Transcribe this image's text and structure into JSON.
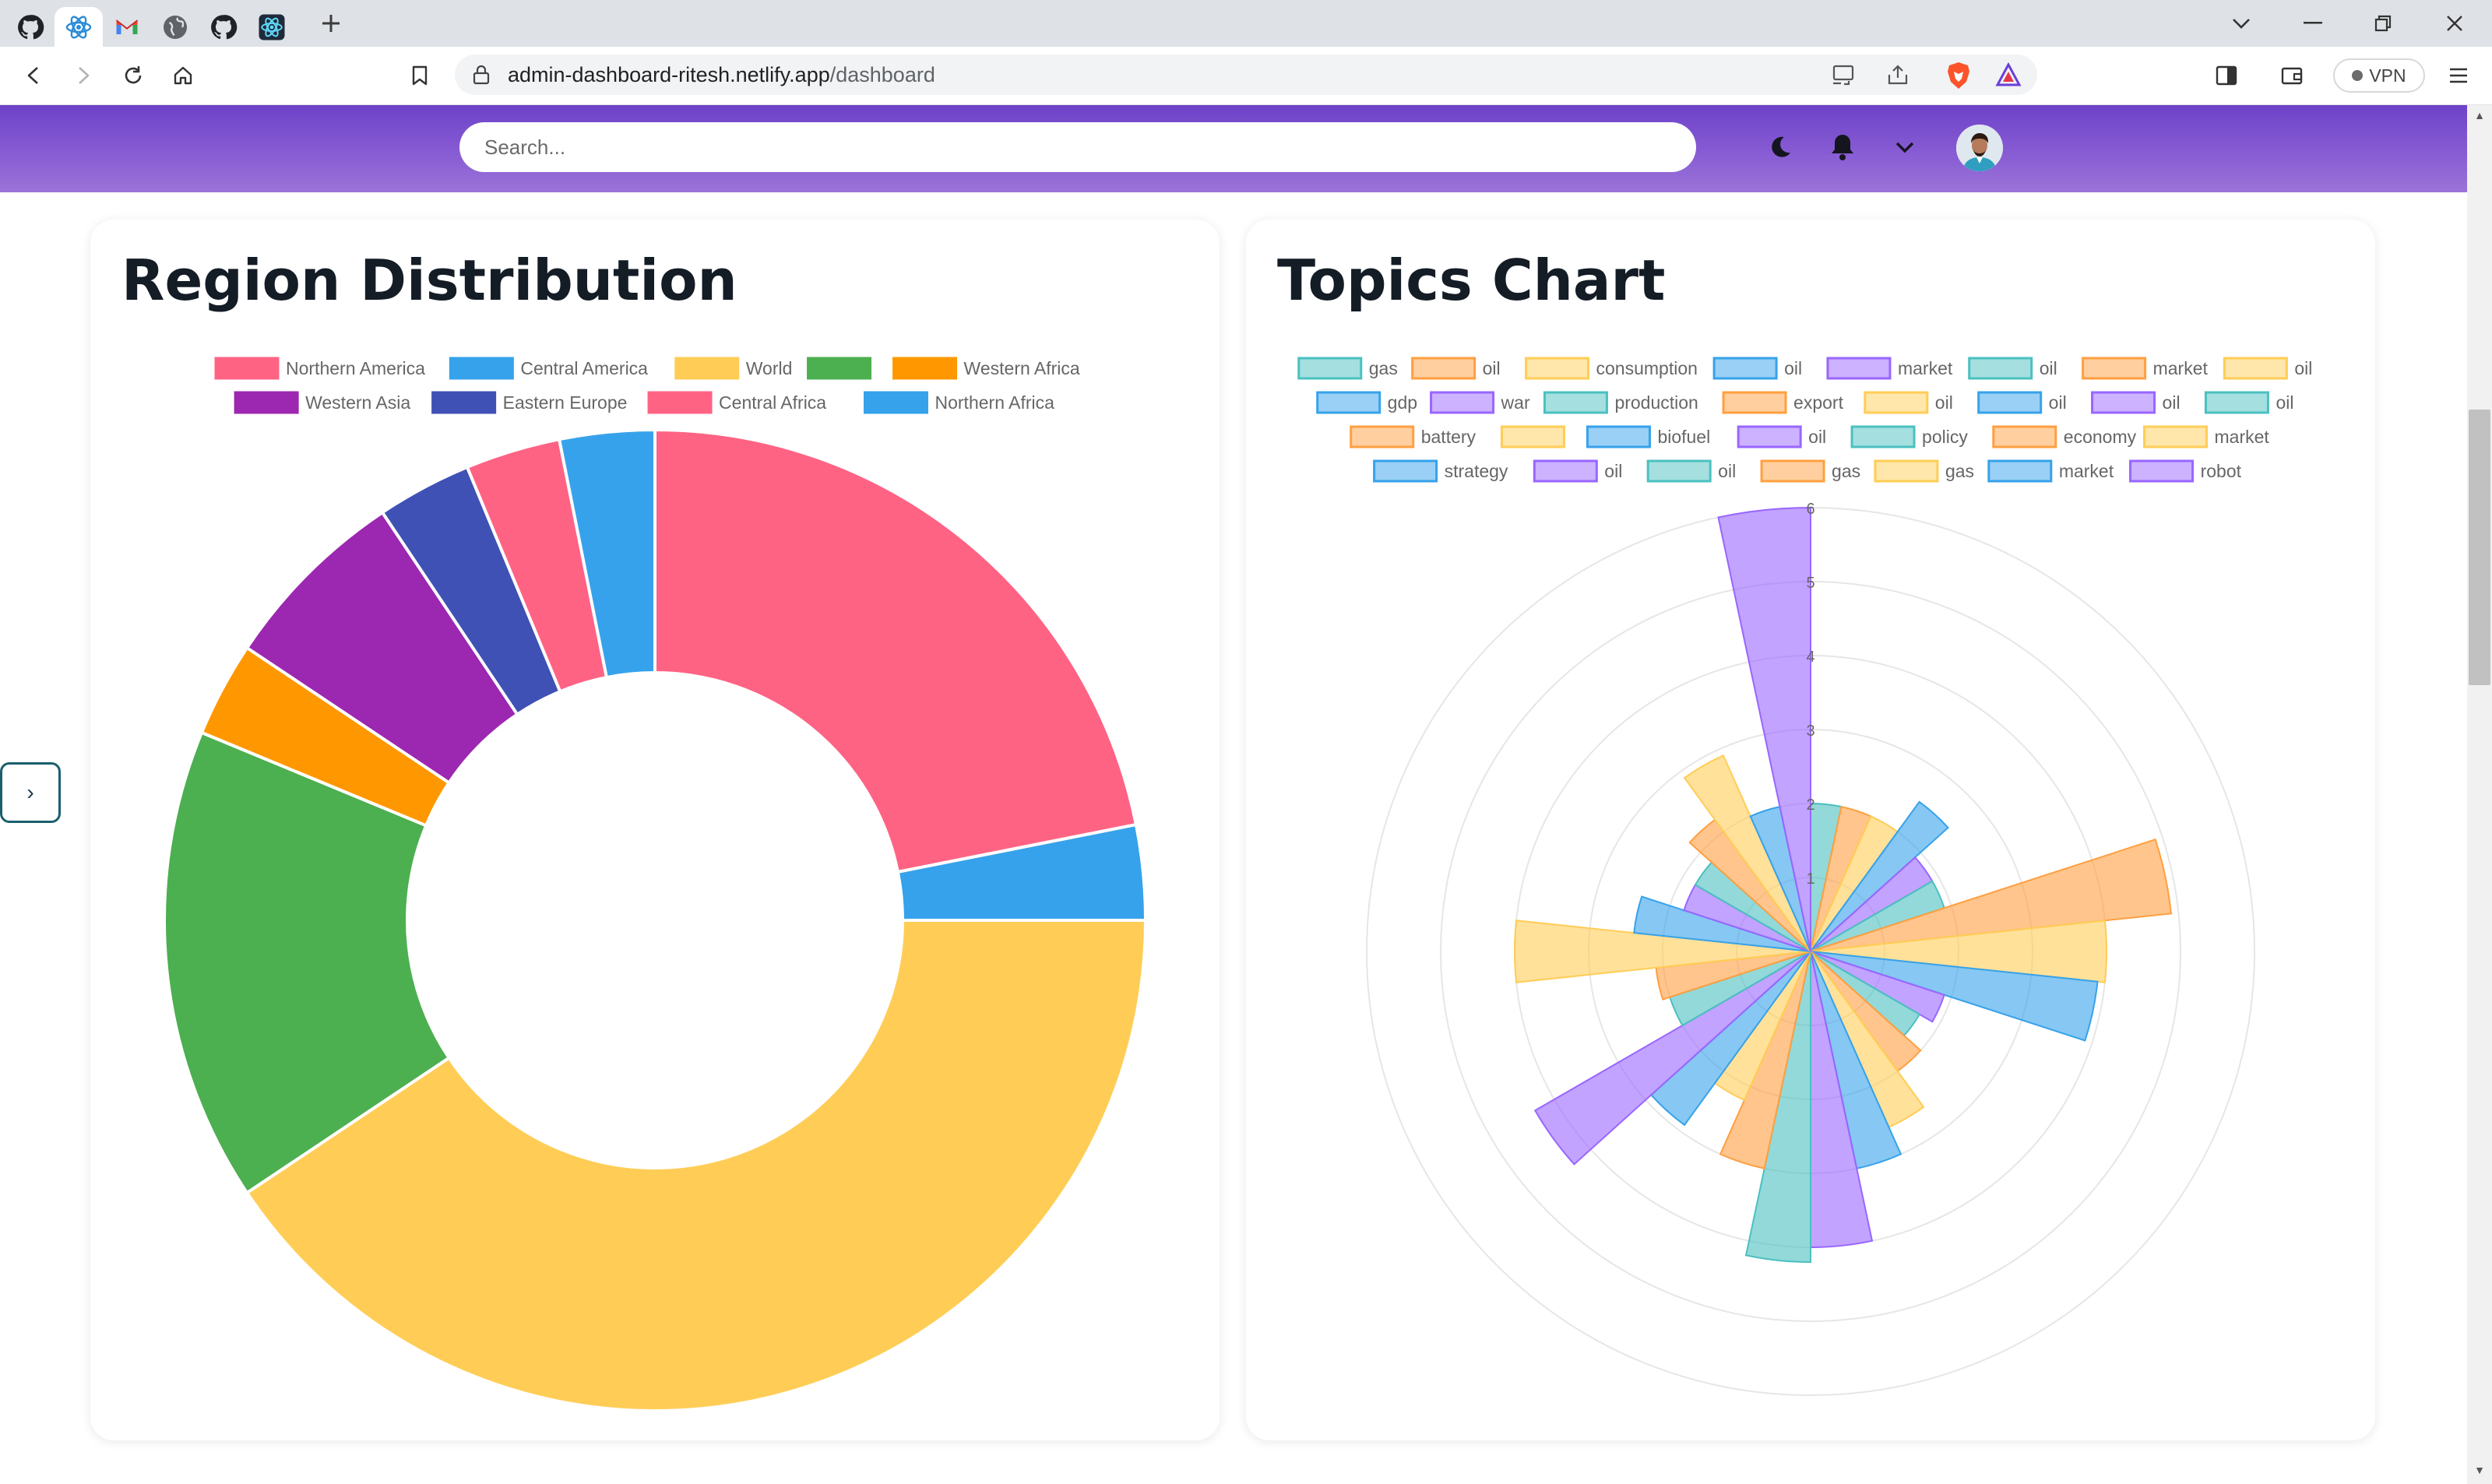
{
  "browser": {
    "url_host": "admin-dashboard-ritesh.netlify.app",
    "url_path": "/dashboard",
    "vpn_label": "VPN",
    "tabs": [
      {
        "icon": "github-icon",
        "active": false
      },
      {
        "icon": "react-icon",
        "active": true
      },
      {
        "icon": "gmail-icon",
        "active": false
      },
      {
        "icon": "globe-icon",
        "active": false
      },
      {
        "icon": "github-icon",
        "active": false
      },
      {
        "icon": "react-icon",
        "active": false
      }
    ]
  },
  "header": {
    "search_placeholder": "Search...",
    "icons": [
      "moon-icon",
      "bell-icon",
      "chevron-down-icon",
      "avatar"
    ]
  },
  "sidebar_toggle": {
    "label": "›"
  },
  "region": {
    "title": "Region Distribution",
    "chart_data": {
      "type": "doughnut",
      "legend_position": "top",
      "categories": [
        "Northern America",
        "Central America",
        "World",
        "",
        "Western Africa",
        "Western Asia",
        "Eastern Europe",
        "Central Africa",
        "Northern Africa"
      ],
      "values": [
        7,
        1,
        13,
        5,
        1,
        2,
        1,
        1,
        1
      ],
      "colors": [
        "#ff6384",
        "#36a2eb",
        "#ffcd56",
        "#4caf50",
        "#ff9800",
        "#9c27b0",
        "#3f51b5",
        "#ff6384",
        "#36a2eb"
      ]
    }
  },
  "topics": {
    "title": "Topics Chart",
    "chart_data": {
      "type": "polarArea",
      "legend_position": "top",
      "r_ticks": [
        1,
        2,
        3,
        4,
        5,
        6
      ],
      "r_max": 6,
      "categories": [
        "gas",
        "oil",
        "consumption",
        "oil",
        "market",
        "oil",
        "market",
        "oil",
        "gdp",
        "war",
        "production",
        "export",
        "oil",
        "oil",
        "oil",
        "oil",
        "battery",
        "",
        "biofuel",
        "oil",
        "policy",
        "economy",
        "market",
        "strategy",
        "oil",
        "oil",
        "gas",
        "gas",
        "market",
        "robot"
      ],
      "values": [
        2,
        2,
        2,
        2.5,
        1.9,
        1.9,
        4.9,
        4,
        3.9,
        1.9,
        1.7,
        2,
        2.6,
        3,
        4,
        4.2,
        3,
        2.2,
        2.9,
        4.3,
        2,
        2.1,
        4,
        2.4,
        1.8,
        1.8,
        2.2,
        2.9,
        2,
        6
      ],
      "colors": [
        "#4bc0c0",
        "#ff9f40",
        "#ffcd56",
        "#36a2eb",
        "#9966ff"
      ]
    }
  }
}
